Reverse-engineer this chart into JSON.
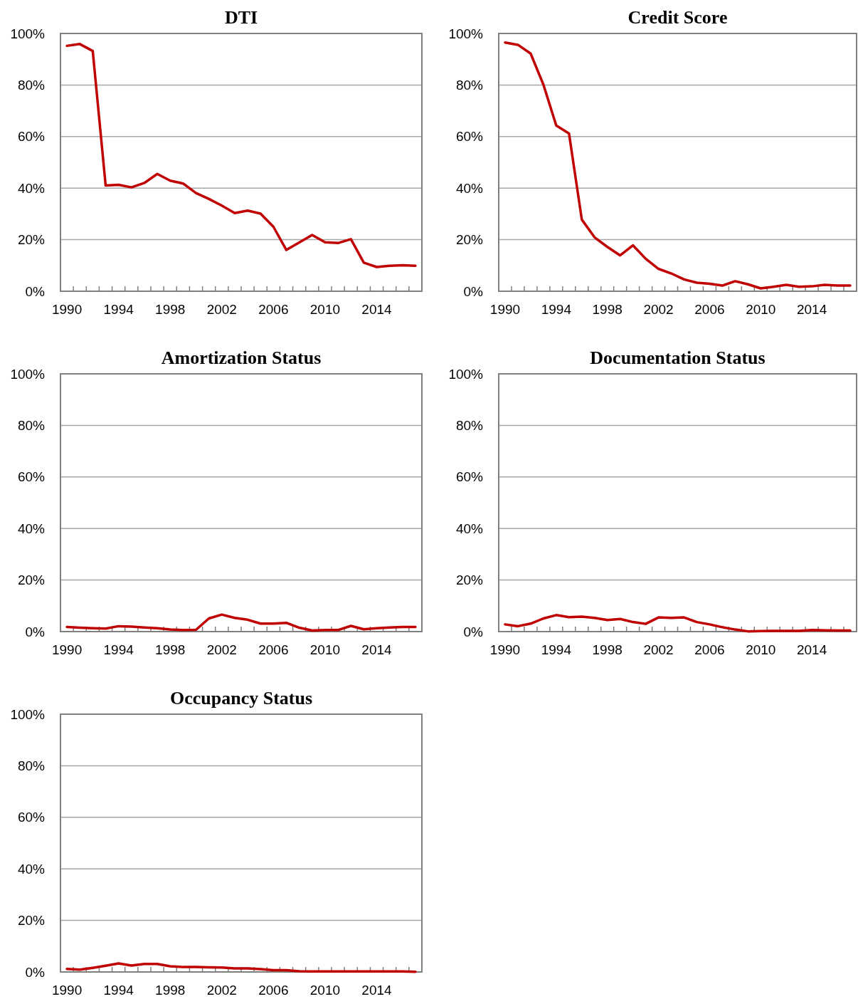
{
  "chart_data": [
    {
      "type": "line",
      "title": "DTI",
      "categories": [
        "1990",
        null,
        null,
        null,
        "1994",
        null,
        null,
        null,
        "1998",
        null,
        null,
        null,
        "2002",
        null,
        null,
        null,
        "2006",
        null,
        null,
        null,
        "2010",
        null,
        null,
        null,
        "2014",
        null,
        null,
        null
      ],
      "series": [
        {
          "color": "#c00000",
          "values": [
            95.2,
            95.9,
            93.2,
            41.0,
            41.3,
            40.3,
            42.0,
            45.5,
            42.9,
            41.8,
            38.1,
            35.8,
            33.2,
            30.3,
            31.3,
            30.1,
            25.0,
            16.0,
            18.9,
            21.8,
            19.0,
            18.7,
            20.2,
            11.1,
            9.4,
            9.9,
            10.1,
            9.9
          ]
        }
      ],
      "ylim": [
        0,
        100
      ],
      "yticks": [
        {
          "value": 0,
          "label": "0%"
        },
        {
          "value": 20,
          "label": "20%"
        },
        {
          "value": 40,
          "label": "40%"
        },
        {
          "value": 60,
          "label": "60%"
        },
        {
          "value": 80,
          "label": "80%"
        },
        {
          "value": 100,
          "label": "100%"
        }
      ],
      "grid": "y",
      "marker": "none",
      "line_style": "solid"
    },
    {
      "type": "line",
      "title": "Credit Score",
      "categories": [
        "1990",
        null,
        null,
        null,
        "1994",
        null,
        null,
        null,
        "1998",
        null,
        null,
        null,
        "2002",
        null,
        null,
        null,
        "2006",
        null,
        null,
        null,
        "2010",
        null,
        null,
        null,
        "2014",
        null,
        null,
        null
      ],
      "series": [
        {
          "color": "#c00000",
          "values": [
            96.5,
            95.6,
            92.2,
            80.1,
            64.3,
            61.2,
            27.8,
            20.9,
            17.2,
            13.9,
            17.8,
            12.6,
            8.7,
            6.9,
            4.6,
            3.3,
            2.9,
            2.2,
            3.9,
            2.7,
            1.1,
            1.7,
            2.5,
            1.7,
            1.9,
            2.5,
            2.2,
            2.2
          ]
        }
      ],
      "ylim": [
        0,
        100
      ],
      "yticks": [
        {
          "value": 0,
          "label": "0%"
        },
        {
          "value": 20,
          "label": "20%"
        },
        {
          "value": 40,
          "label": "40%"
        },
        {
          "value": 60,
          "label": "60%"
        },
        {
          "value": 80,
          "label": "80%"
        },
        {
          "value": 100,
          "label": "100%"
        }
      ],
      "grid": "y",
      "marker": "none",
      "line_style": "solid"
    },
    {
      "type": "line",
      "title": "Amortization Status",
      "categories": [
        "1990",
        null,
        null,
        null,
        "1994",
        null,
        null,
        null,
        "1998",
        null,
        null,
        null,
        "2002",
        null,
        null,
        null,
        "2006",
        null,
        null,
        null,
        "2010",
        null,
        null,
        null,
        "2014",
        null,
        null,
        null
      ],
      "series": [
        {
          "color": "#c00000",
          "values": [
            1.8,
            1.5,
            1.3,
            1.2,
            2.1,
            1.9,
            1.6,
            1.3,
            0.8,
            0.6,
            0.7,
            5.1,
            6.6,
            5.3,
            4.6,
            3.1,
            3.1,
            3.4,
            1.5,
            0.4,
            0.6,
            0.6,
            2.2,
            0.9,
            1.3,
            1.6,
            1.8,
            1.8
          ]
        }
      ],
      "ylim": [
        0,
        100
      ],
      "yticks": [
        {
          "value": 0,
          "label": "0%"
        },
        {
          "value": 20,
          "label": "20%"
        },
        {
          "value": 40,
          "label": "40%"
        },
        {
          "value": 60,
          "label": "60%"
        },
        {
          "value": 80,
          "label": "80%"
        },
        {
          "value": 100,
          "label": "100%"
        }
      ],
      "grid": "y",
      "marker": "none",
      "line_style": "solid"
    },
    {
      "type": "line",
      "title": "Documentation Status",
      "categories": [
        "1990",
        null,
        null,
        null,
        "1994",
        null,
        null,
        null,
        "1998",
        null,
        null,
        null,
        "2002",
        null,
        null,
        null,
        "2006",
        null,
        null,
        null,
        "2010",
        null,
        null,
        null,
        "2014",
        null,
        null,
        null
      ],
      "series": [
        {
          "color": "#c00000",
          "values": [
            2.8,
            2.1,
            3.1,
            5.1,
            6.4,
            5.6,
            5.8,
            5.3,
            4.5,
            4.9,
            3.7,
            3.0,
            5.5,
            5.3,
            5.5,
            3.7,
            2.8,
            1.7,
            0.8,
            0.1,
            0.2,
            0.3,
            0.3,
            0.3,
            0.6,
            0.5,
            0.4,
            0.4
          ]
        }
      ],
      "ylim": [
        0,
        100
      ],
      "yticks": [
        {
          "value": 0,
          "label": "0%"
        },
        {
          "value": 20,
          "label": "20%"
        },
        {
          "value": 40,
          "label": "40%"
        },
        {
          "value": 60,
          "label": "60%"
        },
        {
          "value": 80,
          "label": "80%"
        },
        {
          "value": 100,
          "label": "100%"
        }
      ],
      "grid": "y",
      "marker": "none",
      "line_style": "solid"
    },
    {
      "type": "line",
      "title": "Occupancy Status",
      "categories": [
        "1990",
        null,
        null,
        null,
        "1994",
        null,
        null,
        null,
        "1998",
        null,
        null,
        null,
        "2002",
        null,
        null,
        null,
        "2006",
        null,
        null,
        null,
        "2010",
        null,
        null,
        null,
        "2014",
        null,
        null,
        null
      ],
      "series": [
        {
          "color": "#c00000",
          "values": [
            1.2,
            0.9,
            1.6,
            2.4,
            3.3,
            2.5,
            3.1,
            3.1,
            2.2,
            1.9,
            1.9,
            1.8,
            1.7,
            1.4,
            1.4,
            1.1,
            0.7,
            0.7,
            0.3,
            0.2,
            0.2,
            0.2,
            0.2,
            0.2,
            0.2,
            0.2,
            0.2,
            0.1
          ]
        }
      ],
      "ylim": [
        0,
        100
      ],
      "yticks": [
        {
          "value": 0,
          "label": "0%"
        },
        {
          "value": 20,
          "label": "20%"
        },
        {
          "value": 40,
          "label": "40%"
        },
        {
          "value": 60,
          "label": "60%"
        },
        {
          "value": 80,
          "label": "80%"
        },
        {
          "value": 100,
          "label": "100%"
        }
      ],
      "grid": "y",
      "marker": "none",
      "line_style": "solid"
    }
  ]
}
